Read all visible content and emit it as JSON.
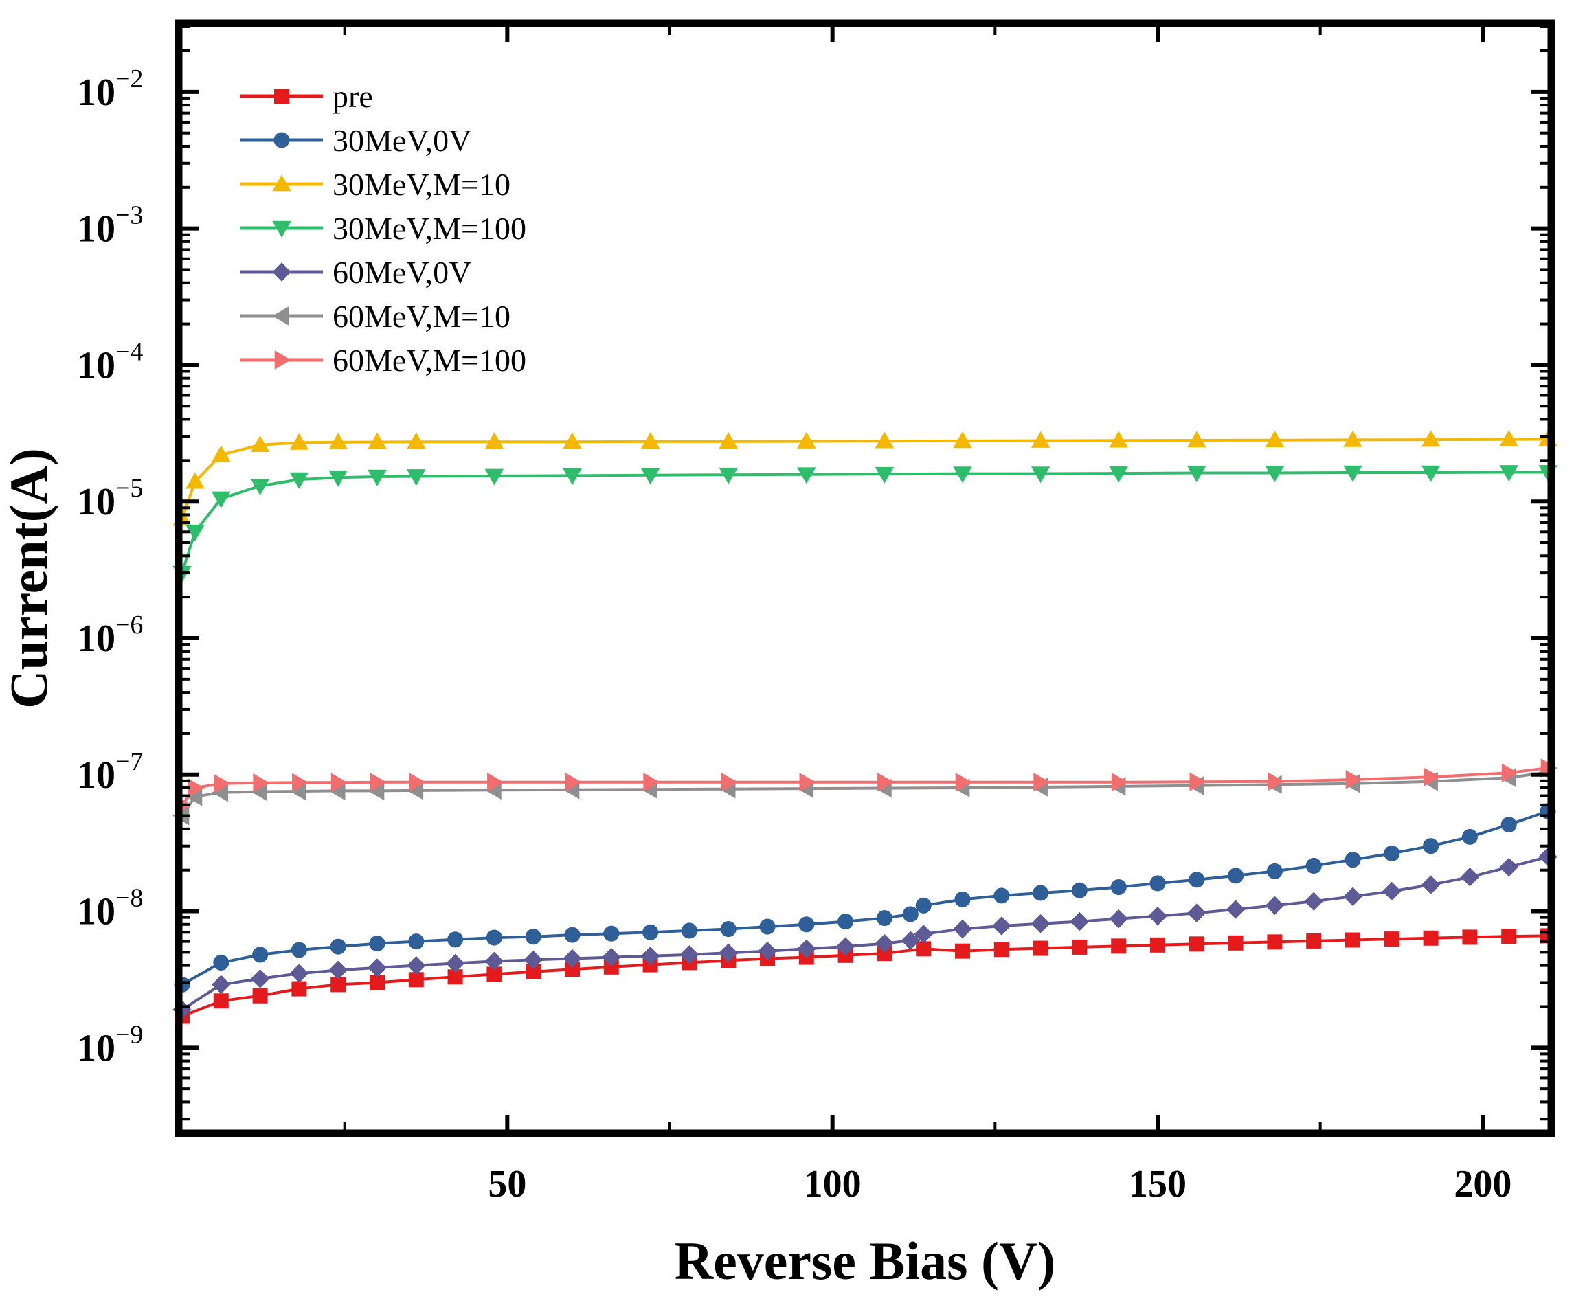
{
  "chart_data": {
    "type": "line",
    "title": "",
    "xlabel": "Reverse Bias (V)",
    "ylabel": "Current(A)",
    "xlim": [
      0,
      210
    ],
    "ylim": [
      2.5e-10,
      0.03
    ],
    "yscale": "log",
    "grid": false,
    "legend_position": "top-left",
    "x_ticks": [
      {
        "value": 50,
        "label": "50"
      },
      {
        "value": 100,
        "label": "100"
      },
      {
        "value": 150,
        "label": "150"
      },
      {
        "value": 200,
        "label": "200"
      }
    ],
    "y_ticks": [
      {
        "value": 1e-09,
        "base": "10",
        "exp": "−9"
      },
      {
        "value": 1e-08,
        "base": "10",
        "exp": "−8"
      },
      {
        "value": 1e-07,
        "base": "10",
        "exp": "−7"
      },
      {
        "value": 1e-06,
        "base": "10",
        "exp": "−6"
      },
      {
        "value": 1e-05,
        "base": "10",
        "exp": "−5"
      },
      {
        "value": 0.0001,
        "base": "10",
        "exp": "−4"
      },
      {
        "value": 0.001,
        "base": "10",
        "exp": "−3"
      },
      {
        "value": 0.01,
        "base": "10",
        "exp": "−2"
      }
    ],
    "series": [
      {
        "name": "pre",
        "color": "#e41a1c",
        "marker": "square",
        "x": [
          0,
          6,
          12,
          18,
          24,
          30,
          36,
          42,
          48,
          54,
          60,
          66,
          72,
          78,
          84,
          90,
          96,
          102,
          108,
          114,
          120,
          126,
          132,
          138,
          144,
          150,
          156,
          162,
          168,
          174,
          180,
          186,
          192,
          198,
          204,
          210
        ],
        "y": [
          1.7e-09,
          2.2e-09,
          2.4e-09,
          2.7e-09,
          2.9e-09,
          3e-09,
          3.15e-09,
          3.3e-09,
          3.45e-09,
          3.6e-09,
          3.75e-09,
          3.9e-09,
          4.05e-09,
          4.2e-09,
          4.35e-09,
          4.5e-09,
          4.6e-09,
          4.75e-09,
          4.9e-09,
          5.3e-09,
          5.1e-09,
          5.25e-09,
          5.35e-09,
          5.45e-09,
          5.55e-09,
          5.65e-09,
          5.75e-09,
          5.85e-09,
          5.95e-09,
          6.05e-09,
          6.15e-09,
          6.25e-09,
          6.35e-09,
          6.45e-09,
          6.55e-09,
          6.6e-09
        ]
      },
      {
        "name": "30MeV,0V",
        "color": "#2e5f98",
        "marker": "circle",
        "x": [
          0,
          6,
          12,
          18,
          24,
          30,
          36,
          42,
          48,
          54,
          60,
          66,
          72,
          78,
          84,
          90,
          96,
          102,
          108,
          112,
          114,
          120,
          126,
          132,
          138,
          144,
          150,
          156,
          162,
          168,
          174,
          180,
          186,
          192,
          198,
          204,
          210
        ],
        "y": [
          2.9e-09,
          4.2e-09,
          4.8e-09,
          5.2e-09,
          5.5e-09,
          5.8e-09,
          6e-09,
          6.2e-09,
          6.4e-09,
          6.5e-09,
          6.7e-09,
          6.85e-09,
          7e-09,
          7.2e-09,
          7.4e-09,
          7.7e-09,
          8e-09,
          8.4e-09,
          8.9e-09,
          9.5e-09,
          1.1e-08,
          1.22e-08,
          1.3e-08,
          1.36e-08,
          1.42e-08,
          1.5e-08,
          1.6e-08,
          1.7e-08,
          1.82e-08,
          1.96e-08,
          2.15e-08,
          2.38e-08,
          2.65e-08,
          3e-08,
          3.5e-08,
          4.3e-08,
          5.4e-08
        ]
      },
      {
        "name": "30MeV,M=10",
        "color": "#f5b800",
        "marker": "triangle-up",
        "x": [
          0,
          2,
          6,
          12,
          18,
          24,
          30,
          36,
          48,
          60,
          72,
          84,
          96,
          108,
          120,
          132,
          144,
          156,
          168,
          180,
          192,
          204,
          210
        ],
        "y": [
          7.5e-06,
          1.4e-05,
          2.2e-05,
          2.6e-05,
          2.7e-05,
          2.72e-05,
          2.73e-05,
          2.74e-05,
          2.74e-05,
          2.74e-05,
          2.75e-05,
          2.75e-05,
          2.76e-05,
          2.77e-05,
          2.78e-05,
          2.79e-05,
          2.8e-05,
          2.81e-05,
          2.82e-05,
          2.83e-05,
          2.84e-05,
          2.85e-05,
          2.86e-05
        ]
      },
      {
        "name": "30MeV,M=100",
        "color": "#2ebd6b",
        "marker": "triangle-down",
        "x": [
          0,
          2,
          6,
          12,
          18,
          24,
          30,
          36,
          48,
          60,
          72,
          84,
          96,
          108,
          120,
          132,
          144,
          156,
          168,
          180,
          192,
          204,
          210
        ],
        "y": [
          3e-06,
          6e-06,
          1.05e-05,
          1.3e-05,
          1.45e-05,
          1.5e-05,
          1.52e-05,
          1.53e-05,
          1.54e-05,
          1.55e-05,
          1.56e-05,
          1.57e-05,
          1.58e-05,
          1.59e-05,
          1.6e-05,
          1.6e-05,
          1.61e-05,
          1.62e-05,
          1.62e-05,
          1.63e-05,
          1.63e-05,
          1.64e-05,
          1.64e-05
        ]
      },
      {
        "name": "60MeV,0V",
        "color": "#5e5a96",
        "marker": "diamond",
        "x": [
          0,
          6,
          12,
          18,
          24,
          30,
          36,
          42,
          48,
          54,
          60,
          66,
          72,
          78,
          84,
          90,
          96,
          102,
          108,
          112,
          114,
          120,
          126,
          132,
          138,
          144,
          150,
          156,
          162,
          168,
          174,
          180,
          186,
          192,
          198,
          204,
          210
        ],
        "y": [
          1.9e-09,
          2.9e-09,
          3.2e-09,
          3.5e-09,
          3.7e-09,
          3.85e-09,
          4e-09,
          4.15e-09,
          4.3e-09,
          4.4e-09,
          4.5e-09,
          4.6e-09,
          4.7e-09,
          4.8e-09,
          4.95e-09,
          5.1e-09,
          5.3e-09,
          5.5e-09,
          5.8e-09,
          6.1e-09,
          6.8e-09,
          7.4e-09,
          7.8e-09,
          8.1e-09,
          8.4e-09,
          8.8e-09,
          9.2e-09,
          9.7e-09,
          1.03e-08,
          1.1e-08,
          1.18e-08,
          1.28e-08,
          1.4e-08,
          1.56e-08,
          1.78e-08,
          2.1e-08,
          2.5e-08
        ]
      },
      {
        "name": "60MeV,M=10",
        "color": "#8f8f8f",
        "marker": "triangle-left",
        "x": [
          0,
          2,
          6,
          12,
          18,
          24,
          30,
          36,
          48,
          60,
          72,
          84,
          96,
          108,
          120,
          132,
          144,
          156,
          168,
          180,
          192,
          204,
          210
        ],
        "y": [
          5e-08,
          6.9e-08,
          7.4e-08,
          7.5e-08,
          7.55e-08,
          7.6e-08,
          7.6e-08,
          7.65e-08,
          7.7e-08,
          7.75e-08,
          7.8e-08,
          7.85e-08,
          7.9e-08,
          7.95e-08,
          8e-08,
          8.1e-08,
          8.2e-08,
          8.3e-08,
          8.45e-08,
          8.6e-08,
          8.9e-08,
          9.5e-08,
          1.04e-07
        ]
      },
      {
        "name": "60MeV,M=100",
        "color": "#f26d6d",
        "marker": "triangle-right",
        "x": [
          0,
          2,
          6,
          12,
          18,
          24,
          30,
          36,
          48,
          60,
          72,
          84,
          96,
          108,
          120,
          132,
          144,
          156,
          168,
          180,
          192,
          204,
          210
        ],
        "y": [
          6e-08,
          8e-08,
          8.6e-08,
          8.7e-08,
          8.75e-08,
          8.75e-08,
          8.8e-08,
          8.8e-08,
          8.8e-08,
          8.8e-08,
          8.8e-08,
          8.8e-08,
          8.8e-08,
          8.8e-08,
          8.8e-08,
          8.8e-08,
          8.8e-08,
          8.85e-08,
          8.9e-08,
          9.2e-08,
          9.6e-08,
          1.03e-07,
          1.12e-07
        ]
      }
    ]
  }
}
